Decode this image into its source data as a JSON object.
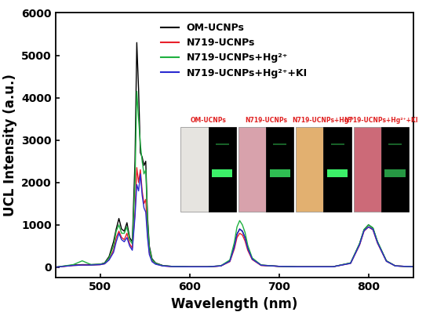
{
  "chart_data": {
    "type": "line",
    "x_label": "Wavelength (nm)",
    "y_label": "UCL Intensity (a.u.)",
    "xlim": [
      450,
      850
    ],
    "xticks": [
      500,
      600,
      700,
      800
    ],
    "ylim": [
      -250,
      6000
    ],
    "yticks": [
      0,
      1000,
      2000,
      3000,
      4000,
      5000,
      6000
    ],
    "legend": "upper center",
    "annotations": [
      "OM-UCNPs",
      "N719-UCNPs",
      "N719-UCNPs+Hg²⁺",
      "N719-UCNPs+Hg²⁺+KI"
    ],
    "x": [
      450,
      470,
      480,
      490,
      500,
      505,
      510,
      515,
      518,
      521,
      524,
      527,
      530,
      533,
      536,
      539,
      541,
      543,
      545,
      547,
      549,
      551,
      553,
      555,
      558,
      562,
      570,
      580,
      600,
      620,
      635,
      645,
      650,
      653,
      656,
      659,
      662,
      665,
      670,
      680,
      700,
      720,
      760,
      780,
      790,
      795,
      800,
      805,
      810,
      820,
      830,
      850
    ],
    "series": [
      {
        "name": "OM-UCNPs",
        "color": "#000000",
        "values": [
          0,
          50,
          60,
          60,
          70,
          100,
          250,
          600,
          900,
          1150,
          900,
          850,
          1050,
          700,
          600,
          2500,
          5300,
          4200,
          2700,
          2600,
          2400,
          2500,
          1200,
          500,
          200,
          100,
          40,
          20,
          10,
          10,
          30,
          150,
          500,
          780,
          900,
          850,
          700,
          450,
          200,
          50,
          20,
          10,
          10,
          100,
          550,
          880,
          1000,
          920,
          600,
          150,
          30,
          10
        ]
      },
      {
        "name": "N719-UCNPs",
        "color": "#e8202a",
        "values": [
          0,
          40,
          50,
          50,
          60,
          80,
          180,
          400,
          700,
          850,
          700,
          650,
          800,
          550,
          450,
          1300,
          2350,
          2000,
          2300,
          1800,
          1500,
          1600,
          800,
          350,
          150,
          80,
          30,
          15,
          10,
          10,
          30,
          130,
          430,
          700,
          800,
          760,
          620,
          400,
          180,
          40,
          20,
          10,
          10,
          90,
          520,
          850,
          950,
          880,
          570,
          140,
          30,
          10
        ]
      },
      {
        "name": "N719-UCNPs+Hg²⁺",
        "color": "#1fb040",
        "values": [
          0,
          60,
          150,
          60,
          70,
          90,
          220,
          500,
          850,
          1000,
          800,
          800,
          950,
          650,
          550,
          2000,
          4150,
          3500,
          2900,
          2500,
          2200,
          2300,
          1100,
          450,
          180,
          90,
          35,
          20,
          10,
          10,
          35,
          170,
          580,
          950,
          1100,
          1000,
          820,
          520,
          220,
          50,
          20,
          10,
          10,
          100,
          560,
          890,
          1000,
          930,
          610,
          150,
          30,
          10
        ]
      },
      {
        "name": "N719-UCNPs+Hg²⁺+KI",
        "color": "#2a2ad0",
        "values": [
          0,
          40,
          50,
          50,
          60,
          80,
          170,
          350,
          600,
          800,
          650,
          600,
          700,
          500,
          400,
          1200,
          1950,
          1800,
          2200,
          1700,
          1400,
          1300,
          700,
          300,
          130,
          70,
          30,
          15,
          10,
          10,
          30,
          140,
          470,
          780,
          900,
          850,
          690,
          440,
          190,
          45,
          20,
          10,
          10,
          90,
          530,
          860,
          950,
          890,
          580,
          140,
          30,
          10
        ]
      }
    ]
  }
}
